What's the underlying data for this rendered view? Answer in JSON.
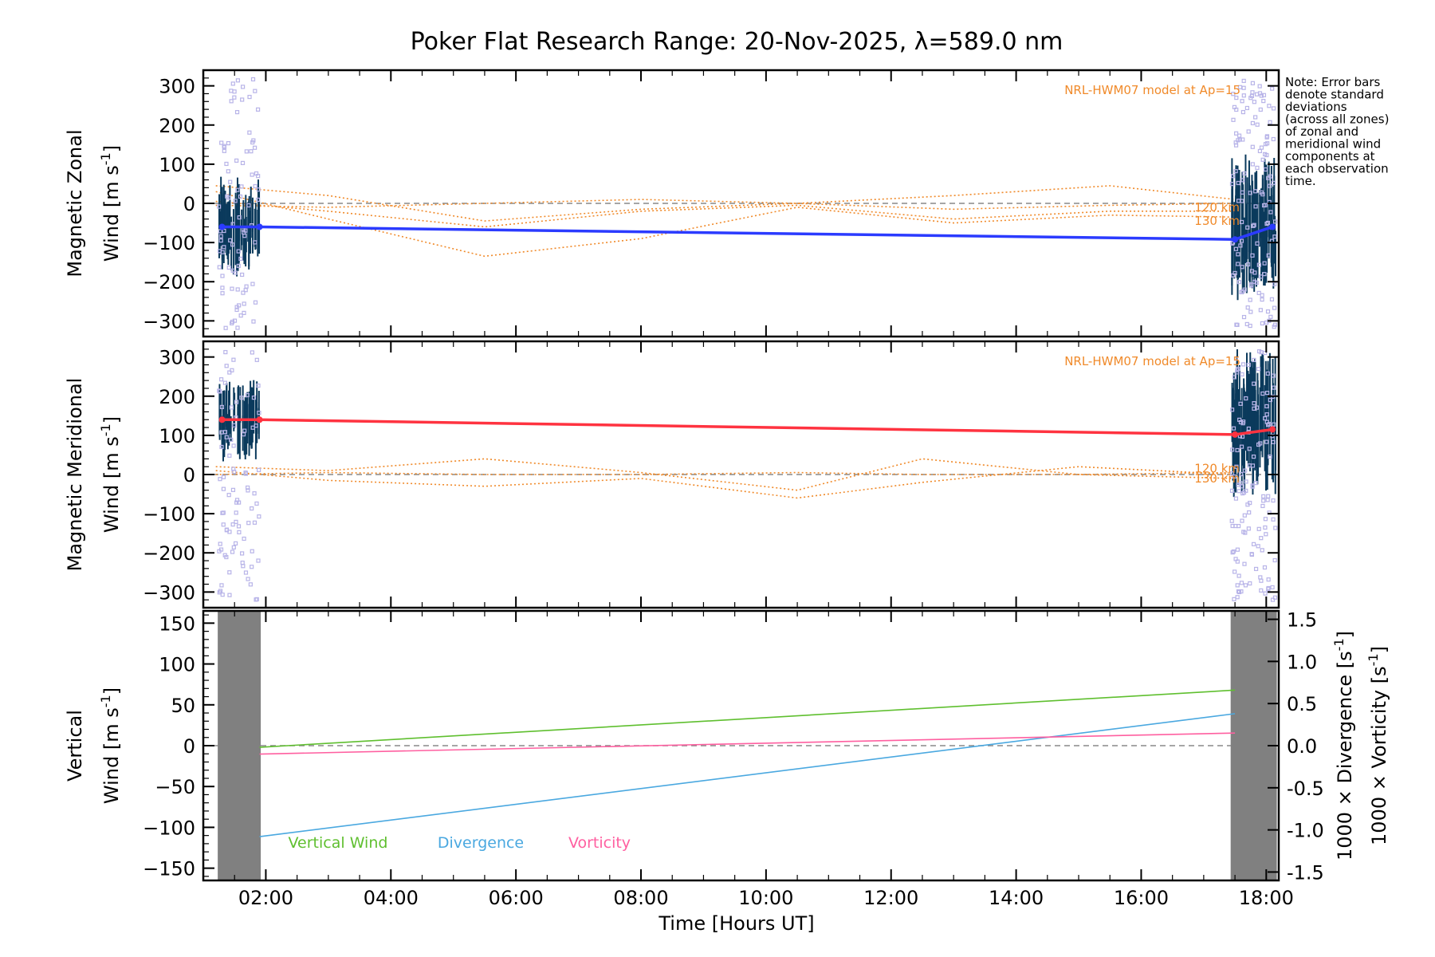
{
  "chart_data": {
    "title": "Poker Flat Research Range: 20-Nov-2025, λ=589.0 nm",
    "xlabel": "Time [Hours UT]",
    "xlim": [
      1.0,
      18.2
    ],
    "xticks": [
      {
        "value": 2,
        "label": "02:00"
      },
      {
        "value": 4,
        "label": "04:00"
      },
      {
        "value": 6,
        "label": "06:00"
      },
      {
        "value": 8,
        "label": "08:00"
      },
      {
        "value": 10,
        "label": "10:00"
      },
      {
        "value": 12,
        "label": "12:00"
      },
      {
        "value": 14,
        "label": "14:00"
      },
      {
        "value": 16,
        "label": "16:00"
      },
      {
        "value": 18,
        "label": "18:00"
      }
    ],
    "note_lines": [
      "Note: Error bars",
      "denote standard",
      "deviations",
      "(across all zones)",
      "of zonal and",
      "meridional wind",
      "components at",
      "each observation",
      "time."
    ],
    "panels": [
      {
        "id": "zonal",
        "type": "line",
        "ylabel_line1": "Magnetic Zonal",
        "ylabel_line2": "Wind [m s",
        "ylabel_exp": "-1",
        "ylabel_close": "]",
        "ylim": [
          -340,
          340
        ],
        "yticks": [
          -300,
          -200,
          -100,
          0,
          100,
          200,
          300
        ],
        "series_color": "#2b3bff",
        "series": {
          "name": "Magnetic Zonal Wind",
          "x": [
            1.3,
            1.9,
            17.5,
            18.1
          ],
          "y": [
            -60,
            -60,
            -92,
            -60
          ]
        },
        "model_label": "NRL-HWM07 model at Ap=15",
        "model_alt_labels": [
          "120 km",
          "130 km"
        ],
        "model_curves": [
          {
            "x": [
              1.2,
              3.0,
              5.5,
              8.0,
              10.5,
              13.0,
              15.5,
              17.5
            ],
            "y": [
              30,
              -40,
              -135,
              -90,
              -10,
              -50,
              -30,
              -35
            ]
          },
          {
            "x": [
              1.2,
              3.0,
              5.5,
              8.0,
              10.5,
              13.0,
              15.5,
              17.5
            ],
            "y": [
              45,
              20,
              -45,
              -15,
              0,
              20,
              45,
              10
            ]
          },
          {
            "x": [
              1.2,
              3.0,
              5.5,
              8.0,
              10.5,
              13.0,
              15.5,
              17.5
            ],
            "y": [
              5,
              -20,
              -60,
              -20,
              -5,
              -40,
              -20,
              -20
            ]
          },
          {
            "x": [
              1.2,
              3.0,
              5.5,
              8.0,
              10.5,
              13.0,
              15.5,
              17.5
            ],
            "y": [
              -5,
              -10,
              0,
              10,
              0,
              -15,
              -5,
              0
            ]
          }
        ]
      },
      {
        "id": "meridional",
        "type": "line",
        "ylabel_line1": "Magnetic Meridional",
        "ylabel_line2": "Wind [m s",
        "ylabel_exp": "-1",
        "ylabel_close": "]",
        "ylim": [
          -340,
          340
        ],
        "yticks": [
          -300,
          -200,
          -100,
          0,
          100,
          200,
          300
        ],
        "series_color": "#ff3340",
        "series": {
          "name": "Magnetic Meridional Wind",
          "x": [
            1.3,
            1.9,
            17.5,
            18.1
          ],
          "y": [
            140,
            140,
            102,
            115
          ]
        },
        "model_label": "NRL-HWM07 model at Ap=15",
        "model_alt_labels": [
          "120 km",
          "130 km"
        ],
        "model_curves": [
          {
            "x": [
              1.2,
              3.0,
              5.5,
              8.0,
              10.5,
              12.5,
              15.0,
              17.5
            ],
            "y": [
              20,
              10,
              40,
              5,
              -40,
              40,
              0,
              -10
            ]
          },
          {
            "x": [
              1.2,
              3.0,
              5.5,
              8.0,
              10.5,
              12.5,
              15.0,
              17.5
            ],
            "y": [
              10,
              -15,
              -30,
              -10,
              -60,
              -20,
              20,
              0
            ]
          },
          {
            "x": [
              1.2,
              3.0,
              5.5,
              8.0,
              10.5,
              12.5,
              15.0,
              17.5
            ],
            "y": [
              0,
              5,
              0,
              0,
              5,
              0,
              0,
              5
            ]
          }
        ]
      },
      {
        "id": "vertical",
        "type": "line",
        "ylabel_line1": "Vertical",
        "ylabel_line2": "Wind [m s",
        "ylabel_exp": "-1",
        "ylabel_close": "]",
        "ylim": [
          -165,
          165
        ],
        "yticks": [
          -150,
          -100,
          -50,
          0,
          50,
          100,
          150
        ],
        "right_ylim": [
          -1.6,
          1.6
        ],
        "right_yticks": [
          -1.5,
          -1.0,
          -0.5,
          0.0,
          0.5,
          1.0,
          1.5
        ],
        "right_label_1": "1000 × Divergence [s",
        "right_label_2": "1000 × Vorticity [s",
        "right_exp": "-1",
        "right_close": "]",
        "series": [
          {
            "name": "Vertical Wind",
            "axis": "left",
            "color": "#5fbf2f",
            "x": [
              1.9,
              17.5
            ],
            "y": [
              -2,
              68
            ]
          },
          {
            "name": "Divergence",
            "axis": "right",
            "color": "#4aa8e0",
            "x": [
              1.9,
              17.5
            ],
            "y": [
              -1.08,
              0.38
            ]
          },
          {
            "name": "Vorticity",
            "axis": "right",
            "color": "#ff5fa0",
            "x": [
              1.9,
              17.5
            ],
            "y": [
              -0.1,
              0.15
            ]
          }
        ]
      }
    ],
    "colors": {
      "model": "#f08a2a",
      "errorbar": "#0b3a5c",
      "scatter": "#b8b4e8",
      "shade": "#808080",
      "zero": "#888888"
    }
  }
}
